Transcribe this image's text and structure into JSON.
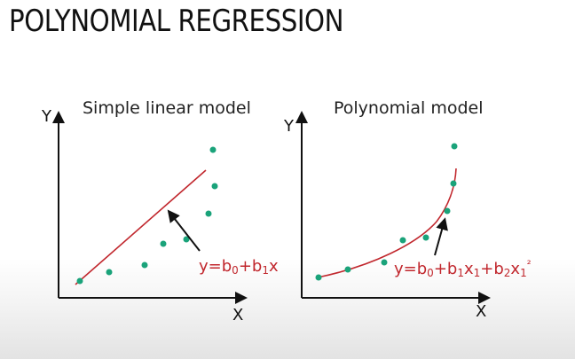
{
  "title": "POLYNOMIAL REGRESSION",
  "colors": {
    "point": "#1aa37a",
    "fit": "#c1272d",
    "axis": "#111111",
    "text": "#222222"
  },
  "panels": [
    {
      "title": "Simple linear model",
      "x_label": "X",
      "y_label": "Y",
      "equation": {
        "prefix": "y=b",
        "s0": "0",
        "mid": "+b",
        "s1": "1",
        "suffix": "x"
      },
      "points": [
        [
          1,
          1
        ],
        [
          2,
          1.5
        ],
        [
          3,
          1.8
        ],
        [
          4,
          2.8
        ],
        [
          5,
          3
        ],
        [
          6,
          4
        ],
        [
          6.2,
          5
        ],
        [
          6.3,
          6.3
        ]
      ],
      "fit": [
        [
          0,
          0.7
        ],
        [
          6,
          6.4
        ]
      ]
    },
    {
      "title": "Polynomial model",
      "x_label": "X",
      "y_label": "Y",
      "equation": {
        "prefix": "y=b",
        "s0": "0",
        "mid": "+b",
        "s1": "1",
        "mid2": "x",
        "s2": "1",
        "mid3": "+b",
        "s3": "2",
        "mid4": "x",
        "s4": "1",
        "sup": "²"
      },
      "points": [
        [
          0.5,
          1
        ],
        [
          1.5,
          1.5
        ],
        [
          3,
          1.8
        ],
        [
          4,
          2.8
        ],
        [
          5,
          3
        ],
        [
          6,
          4
        ],
        [
          6.2,
          5
        ],
        [
          6.3,
          6.3
        ]
      ],
      "fit": "curve"
    }
  ]
}
